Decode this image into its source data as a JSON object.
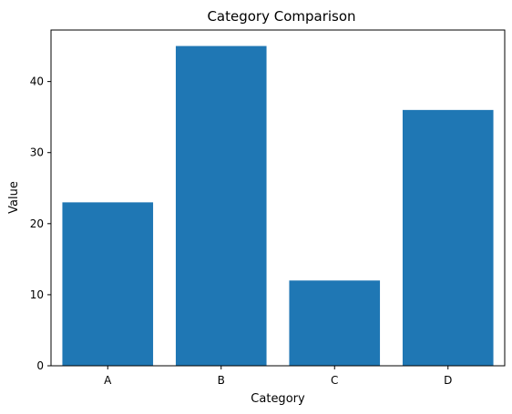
{
  "chart_data": {
    "type": "bar",
    "title": "Category Comparison",
    "xlabel": "Category",
    "ylabel": "Value",
    "categories": [
      "A",
      "B",
      "C",
      "D"
    ],
    "values": [
      23,
      45,
      12,
      36
    ],
    "ylim": [
      0,
      47.25
    ],
    "yticks": [
      0,
      10,
      20,
      30,
      40
    ],
    "bar_color": "#1f77b4",
    "grid": false,
    "legend": "none"
  }
}
